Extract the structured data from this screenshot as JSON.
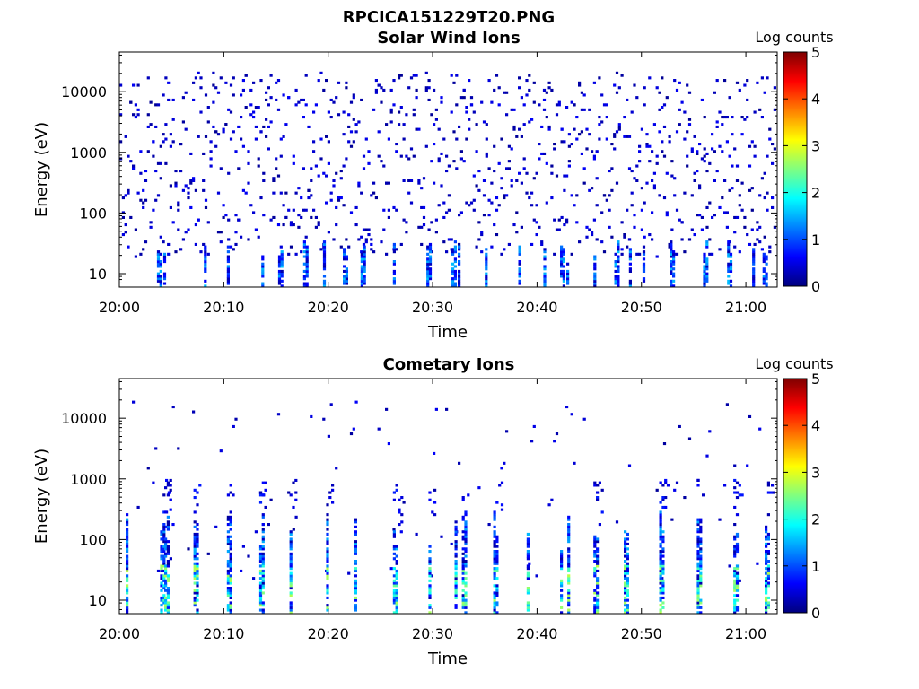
{
  "figure": {
    "title": "RPCICA151229T20.PNG"
  },
  "colormap": {
    "stops": [
      "#00007f",
      "#0000ff",
      "#0080ff",
      "#00ffff",
      "#80ff80",
      "#ffff00",
      "#ff8000",
      "#ff0000",
      "#7f0000"
    ]
  },
  "chart_data": [
    {
      "type": "heatmap",
      "title": "Solar Wind Ions",
      "xlabel": "Time",
      "ylabel": "Energy (eV)",
      "colorbar_label": "Log counts",
      "x_ticks": [
        "20:00",
        "20:10",
        "20:20",
        "20:30",
        "20:40",
        "20:50",
        "21:00"
      ],
      "y_ticks": [
        "10",
        "100",
        "1000",
        "10000"
      ],
      "colorbar_ticks": [
        "0",
        "1",
        "2",
        "3",
        "4",
        "5"
      ],
      "x_range_minutes": [
        0,
        63
      ],
      "y_range_eV": [
        6,
        45000
      ],
      "y_scale": "log",
      "c_range": [
        0,
        5
      ],
      "streaks_minutes": [
        3.6,
        4.2,
        8.1,
        10.3,
        13.6,
        15.2,
        17.6,
        19.5,
        21.4,
        23.1,
        26.2,
        29.4,
        31.8,
        32.4,
        35.0,
        38.2,
        40.6,
        42.2,
        42.8,
        45.4,
        47.4,
        48.8,
        50.1,
        52.7,
        55.9,
        58.2,
        60.6,
        61.6
      ],
      "background_events_per_column": 4,
      "max_log_counts": 1.4
    },
    {
      "type": "heatmap",
      "title": "Cometary Ions",
      "xlabel": "Time",
      "ylabel": "Energy (eV)",
      "colorbar_label": "Log counts",
      "x_ticks": [
        "20:00",
        "20:10",
        "20:20",
        "20:30",
        "20:40",
        "20:50",
        "21:00"
      ],
      "y_ticks": [
        "10",
        "100",
        "1000",
        "10000"
      ],
      "colorbar_ticks": [
        "0",
        "1",
        "2",
        "3",
        "4",
        "5"
      ],
      "x_range_minutes": [
        0,
        63
      ],
      "y_range_eV": [
        6,
        45000
      ],
      "y_scale": "log",
      "c_range": [
        0,
        5
      ],
      "streaks_minutes": [
        0.6,
        3.9,
        4.3,
        7.1,
        10.3,
        13.4,
        16.3,
        19.8,
        22.5,
        26.2,
        29.6,
        32.1,
        32.8,
        35.8,
        39.0,
        42.2,
        42.9,
        45.4,
        48.3,
        51.7,
        55.3,
        58.8,
        61.8
      ],
      "background_events_per_column": 0.4,
      "max_log_counts": 2.6
    }
  ]
}
